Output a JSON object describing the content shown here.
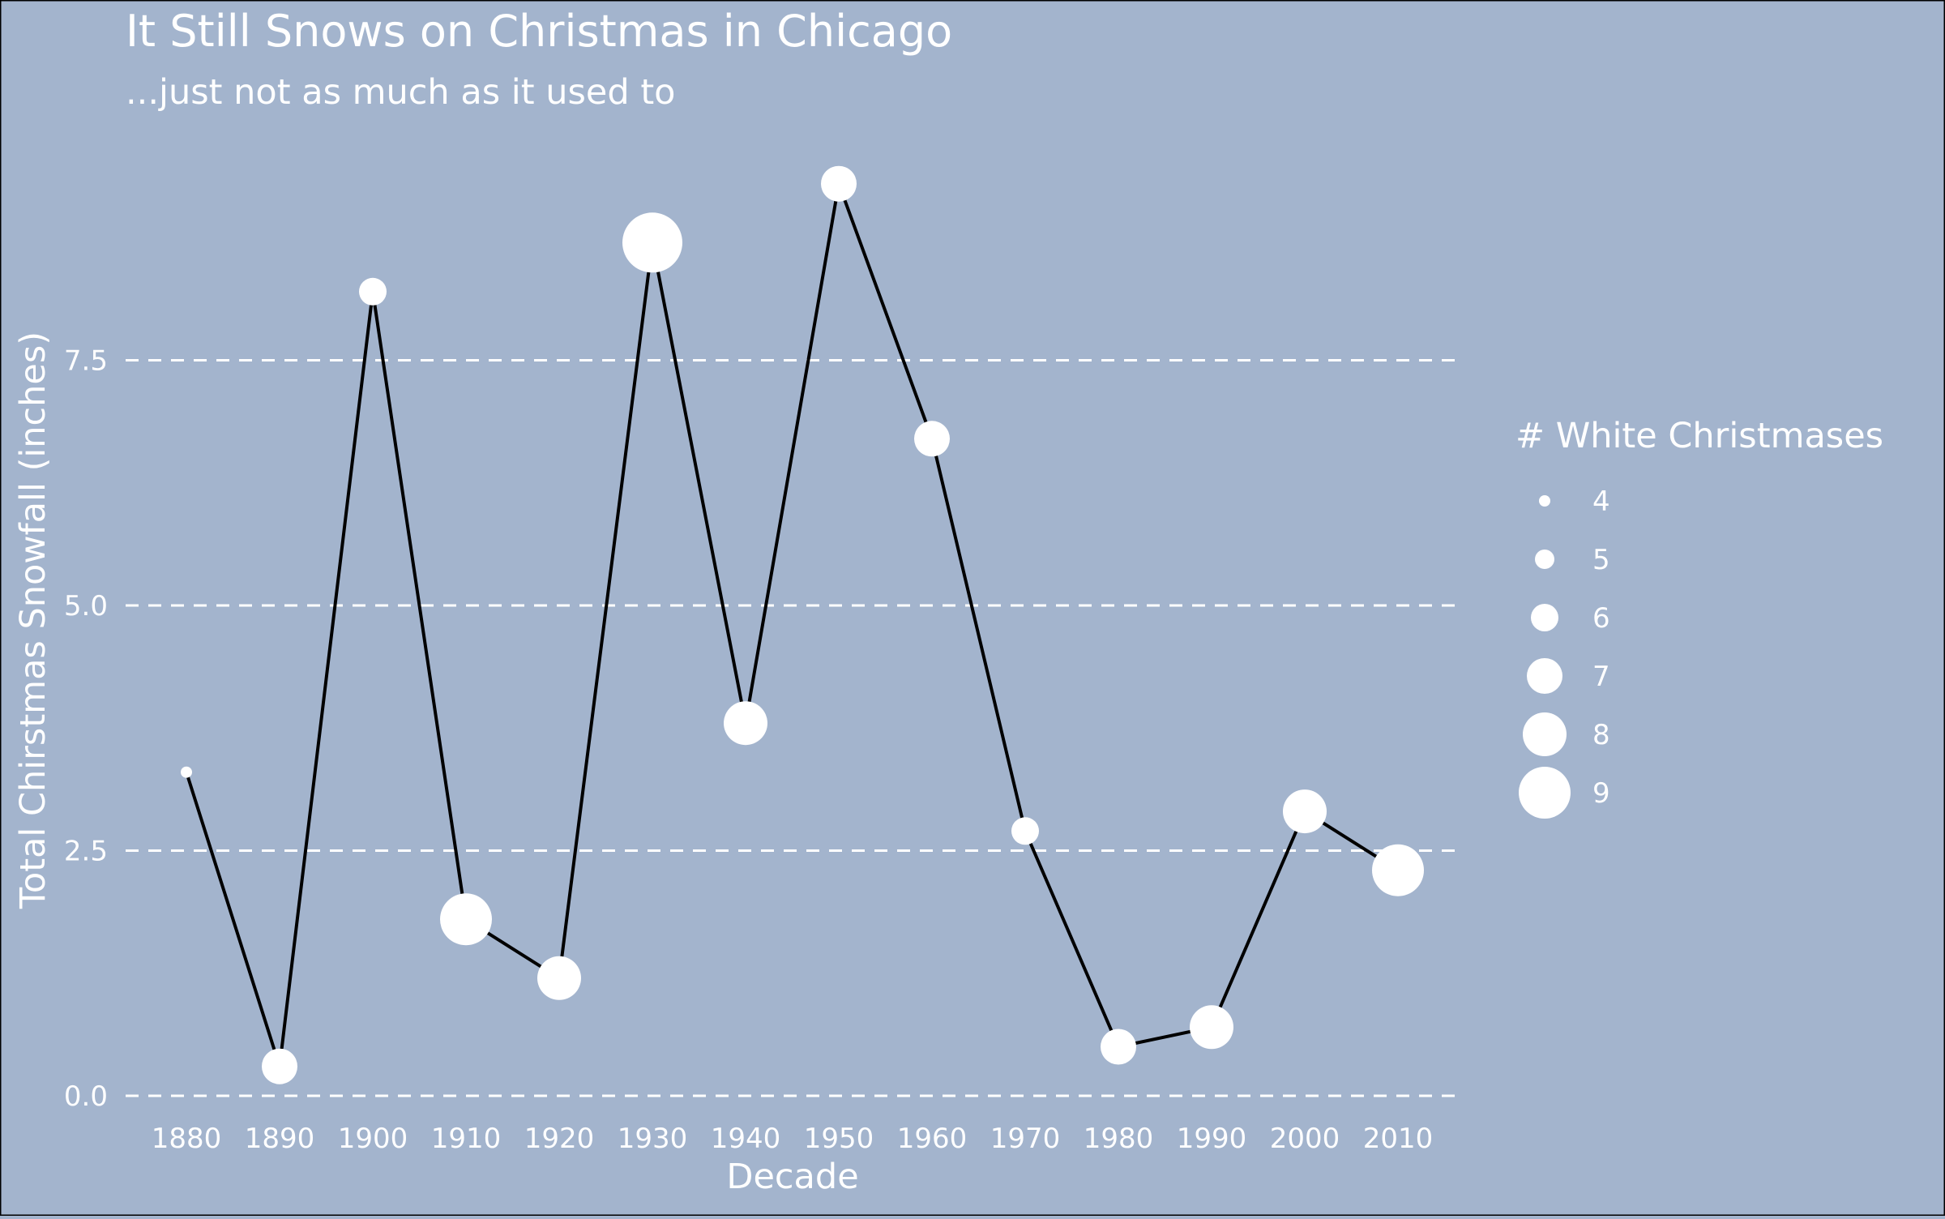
{
  "chart_data": {
    "type": "scatter",
    "title": "It Still Snows on Christmas in Chicago",
    "subtitle": "...just not as much as it used to",
    "xlabel": "Decade",
    "ylabel": "Total Chirstmas Snowfall (inches)",
    "categories": [
      "1880",
      "1890",
      "1900",
      "1910",
      "1920",
      "1930",
      "1940",
      "1950",
      "1960",
      "1970",
      "1980",
      "1990",
      "2000",
      "2010"
    ],
    "snowfall": [
      3.3,
      0.3,
      8.2,
      1.8,
      1.2,
      8.7,
      3.8,
      9.3,
      6.7,
      2.7,
      0.5,
      0.7,
      2.9,
      2.3
    ],
    "white_christmases": [
      4,
      7,
      6,
      9,
      8,
      10,
      8,
      7,
      7,
      6,
      7,
      8,
      8,
      9
    ],
    "ylim": [
      -0.3,
      9.9
    ],
    "y_ticks": [
      "0.0",
      "2.5",
      "5.0",
      "7.5"
    ],
    "grid": "horizontal dashed",
    "legend": {
      "title": "# White Christmases",
      "placement": "right",
      "entries": [
        "4",
        "5",
        "6",
        "7",
        "8",
        "9"
      ]
    },
    "colors": {
      "background": "#a3b4cd",
      "point": "#ffffff",
      "line": "#000000",
      "text": "#ffffff",
      "grid": "#ffffff"
    }
  }
}
